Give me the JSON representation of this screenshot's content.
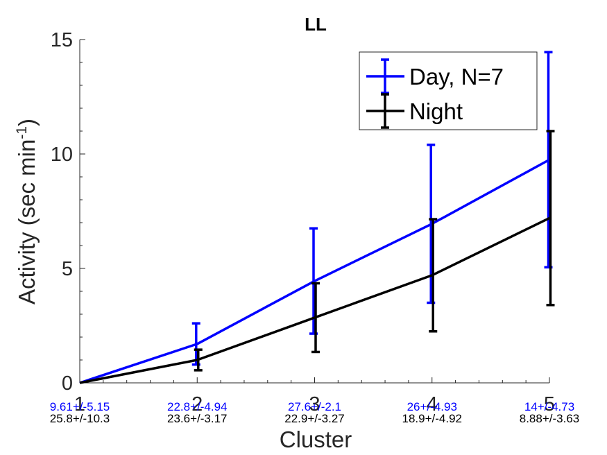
{
  "chart_data": {
    "type": "line",
    "title": "LL",
    "xlabel": "Cluster",
    "ylabel": "Activity (sec min",
    "ylabel_superscript": "-1",
    "ylabel_suffix": ")",
    "xlim": [
      1,
      5
    ],
    "ylim": [
      0,
      15
    ],
    "x": [
      1,
      2,
      3,
      4,
      5
    ],
    "xticks": [
      "1",
      "2",
      "3",
      "4",
      "5"
    ],
    "yticks": [
      "0",
      "5",
      "10",
      "15"
    ],
    "grid": false,
    "legend_position": "top-right",
    "series": [
      {
        "name": "Day, N=7",
        "color": "#0000ff",
        "values": [
          0,
          1.7,
          4.45,
          6.95,
          9.75
        ],
        "err": [
          0,
          0.9,
          2.3,
          3.45,
          4.7
        ],
        "annotations": [
          "9.61+/-5.15",
          "22.8+/-4.94",
          "27.6+/-2.1",
          "26+/-4.93",
          "14+/-4.73"
        ]
      },
      {
        "name": "Night",
        "color": "#000000",
        "values": [
          0,
          1.0,
          2.85,
          4.7,
          7.2
        ],
        "err": [
          0,
          0.45,
          1.5,
          2.45,
          3.8
        ],
        "annotations": [
          "25.8+/-10.3",
          "23.6+/-3.17",
          "22.9+/-3.27",
          "18.9+/-4.92",
          "8.88+/-3.63"
        ]
      }
    ]
  }
}
